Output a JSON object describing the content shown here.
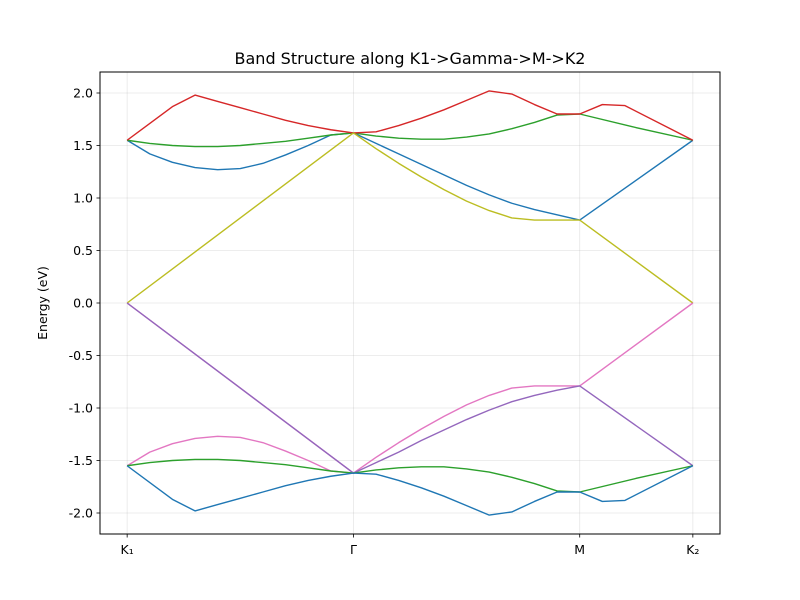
{
  "chart_data": {
    "type": "line",
    "title": "Band Structure along K1->Gamma->M->K2",
    "xlabel": "",
    "ylabel": "Energy (eV)",
    "xticks": [
      {
        "label": "K₁",
        "x": 0.0
      },
      {
        "label": "Γ",
        "x": 1.0
      },
      {
        "label": "M",
        "x": 2.0
      },
      {
        "label": "K₂",
        "x": 2.5
      }
    ],
    "xlim": [
      -0.12,
      2.62
    ],
    "ylim": [
      -2.2,
      2.2
    ],
    "yticks": [
      -2.0,
      -1.5,
      -1.0,
      -0.5,
      0.0,
      0.5,
      1.0,
      1.5,
      2.0
    ],
    "grid": true,
    "series": [
      {
        "color": "#1f77b4",
        "x": [
          0,
          0.1,
          0.2,
          0.3,
          0.4,
          0.5,
          0.6,
          0.7,
          0.8,
          0.9,
          1.0,
          1.1,
          1.2,
          1.3,
          1.4,
          1.5,
          1.6,
          1.7,
          1.8,
          1.9,
          2.0,
          2.25,
          2.5
        ],
        "y": [
          1.55,
          1.42,
          1.34,
          1.29,
          1.27,
          1.28,
          1.33,
          1.41,
          1.5,
          1.6,
          1.62,
          1.52,
          1.42,
          1.32,
          1.22,
          1.12,
          1.03,
          0.95,
          0.89,
          0.84,
          0.79,
          1.17,
          1.55
        ]
      },
      {
        "color": "#2ca02c",
        "x": [
          0,
          0.1,
          0.2,
          0.3,
          0.4,
          0.5,
          0.6,
          0.7,
          0.8,
          0.9,
          1.0,
          1.1,
          1.2,
          1.3,
          1.4,
          1.5,
          1.6,
          1.7,
          1.8,
          1.9,
          2.0,
          2.25,
          2.5
        ],
        "y": [
          1.55,
          1.52,
          1.5,
          1.49,
          1.49,
          1.5,
          1.52,
          1.54,
          1.57,
          1.6,
          1.62,
          1.59,
          1.57,
          1.56,
          1.56,
          1.58,
          1.61,
          1.66,
          1.72,
          1.79,
          1.8,
          1.67,
          1.55
        ]
      },
      {
        "color": "#d62728",
        "x": [
          0,
          0.2,
          0.3,
          0.4,
          0.5,
          0.6,
          0.7,
          0.8,
          0.9,
          1.0,
          1.1,
          1.2,
          1.3,
          1.4,
          1.5,
          1.6,
          1.7,
          1.8,
          1.9,
          2.0,
          2.1,
          2.2,
          2.5
        ],
        "y": [
          1.55,
          1.87,
          1.98,
          1.92,
          1.86,
          1.8,
          1.74,
          1.69,
          1.65,
          1.62,
          1.63,
          1.69,
          1.76,
          1.84,
          1.93,
          2.02,
          1.99,
          1.89,
          1.8,
          1.8,
          1.89,
          1.88,
          1.55
        ]
      },
      {
        "color": "#bcbd22",
        "x": [
          0,
          1.0,
          1.1,
          1.2,
          1.3,
          1.4,
          1.5,
          1.6,
          1.7,
          1.8,
          1.9,
          2.0,
          2.5
        ],
        "y": [
          0.0,
          1.62,
          1.47,
          1.33,
          1.2,
          1.08,
          0.97,
          0.88,
          0.81,
          0.79,
          0.79,
          0.79,
          0.0
        ]
      },
      {
        "color": "#e377c2",
        "x": [
          0,
          1.0,
          1.1,
          1.2,
          1.3,
          1.4,
          1.5,
          1.6,
          1.7,
          1.8,
          1.9,
          2.0,
          2.5
        ],
        "y": [
          0.0,
          -1.62,
          -1.47,
          -1.33,
          -1.2,
          -1.08,
          -0.97,
          -0.88,
          -0.81,
          -0.79,
          -0.79,
          -0.79,
          0.0
        ]
      },
      {
        "color": "#9467bd",
        "x": [
          0,
          1.0,
          1.1,
          1.2,
          1.3,
          1.4,
          1.5,
          1.6,
          1.7,
          1.8,
          1.9,
          2.0,
          2.5
        ],
        "y": [
          0.0,
          -1.62,
          -1.52,
          -1.42,
          -1.31,
          -1.21,
          -1.11,
          -1.02,
          -0.94,
          -0.88,
          -0.83,
          -0.79,
          -1.55
        ]
      },
      {
        "color": "#e377c2",
        "x": [
          0,
          0.1,
          0.2,
          0.3,
          0.4,
          0.5,
          0.6,
          0.7,
          0.8,
          0.9,
          1.0
        ],
        "y": [
          -1.55,
          -1.42,
          -1.34,
          -1.29,
          -1.27,
          -1.28,
          -1.33,
          -1.41,
          -1.5,
          -1.6,
          -1.62
        ]
      },
      {
        "color": "#2ca02c",
        "x": [
          0,
          0.1,
          0.2,
          0.3,
          0.4,
          0.5,
          0.6,
          0.7,
          0.8,
          0.9,
          1.0,
          1.1,
          1.2,
          1.3,
          1.4,
          1.5,
          1.6,
          1.7,
          1.8,
          1.9,
          2.0,
          2.25,
          2.5
        ],
        "y": [
          -1.55,
          -1.52,
          -1.5,
          -1.49,
          -1.49,
          -1.5,
          -1.52,
          -1.54,
          -1.57,
          -1.6,
          -1.62,
          -1.59,
          -1.57,
          -1.56,
          -1.56,
          -1.58,
          -1.61,
          -1.66,
          -1.72,
          -1.79,
          -1.8,
          -1.67,
          -1.55
        ]
      },
      {
        "color": "#1f77b4",
        "x": [
          0,
          0.2,
          0.3,
          0.4,
          0.5,
          0.6,
          0.7,
          0.8,
          0.9,
          1.0,
          1.1,
          1.2,
          1.3,
          1.4,
          1.5,
          1.6,
          1.7,
          1.8,
          1.9,
          2.0,
          2.1,
          2.2,
          2.5
        ],
        "y": [
          -1.55,
          -1.87,
          -1.98,
          -1.92,
          -1.86,
          -1.8,
          -1.74,
          -1.69,
          -1.65,
          -1.62,
          -1.63,
          -1.69,
          -1.76,
          -1.84,
          -1.93,
          -2.02,
          -1.99,
          -1.89,
          -1.8,
          -1.8,
          -1.89,
          -1.88,
          -1.55
        ]
      }
    ]
  }
}
